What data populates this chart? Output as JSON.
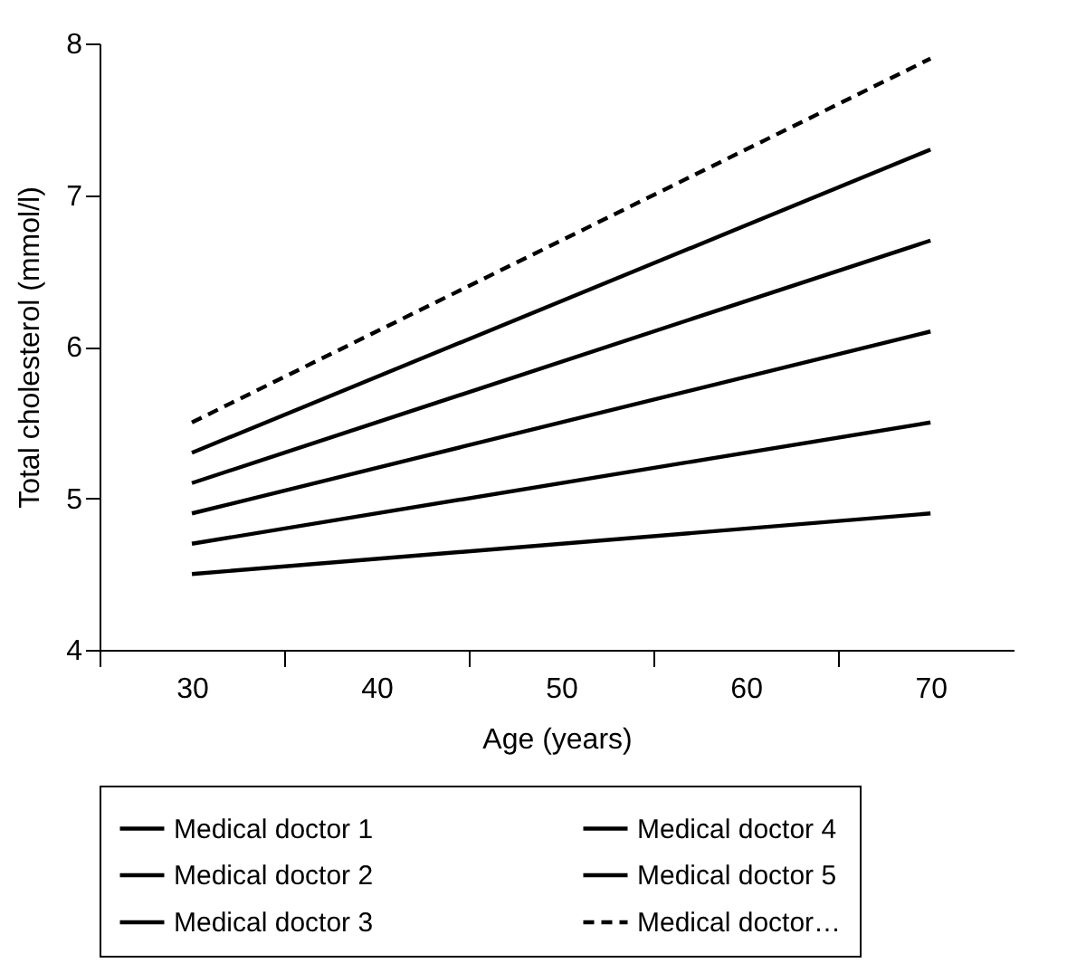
{
  "chart_data": {
    "type": "line",
    "xlabel": "Age (years)",
    "ylabel": "Total cholesterol (mmol/l)",
    "x": [
      30,
      70
    ],
    "series": [
      {
        "name": "Medical doctor 1",
        "color": "#000000",
        "values": [
          5.3,
          7.3
        ]
      },
      {
        "name": "Medical doctor 2",
        "color": "#000000",
        "values": [
          5.1,
          6.7
        ]
      },
      {
        "name": "Medical doctor 3",
        "color": "#000000",
        "values": [
          4.9,
          6.1
        ]
      },
      {
        "name": "Medical doctor 4",
        "color": "#000000",
        "values": [
          4.7,
          5.5
        ]
      },
      {
        "name": "Medical doctor 5",
        "color": "#000000",
        "values": [
          4.5,
          4.9
        ]
      },
      {
        "name": "Medical doctor…",
        "color": "#000000",
        "values": [
          5.5,
          7.9
        ],
        "line_style": "dashed"
      }
    ],
    "xlim": [
      25,
      74.5
    ],
    "xticks": [
      {
        "value": 25,
        "label": null
      },
      30,
      {
        "value": 35,
        "label": null
      },
      40,
      {
        "value": 45,
        "label": null
      },
      50,
      {
        "value": 55,
        "label": null
      },
      60,
      {
        "value": 65,
        "label": null
      },
      70
    ],
    "ylim": [
      4,
      8
    ],
    "yticks": [
      4,
      5,
      6,
      7,
      8
    ],
    "grid": false,
    "legend": "bottom",
    "marker": "none"
  }
}
